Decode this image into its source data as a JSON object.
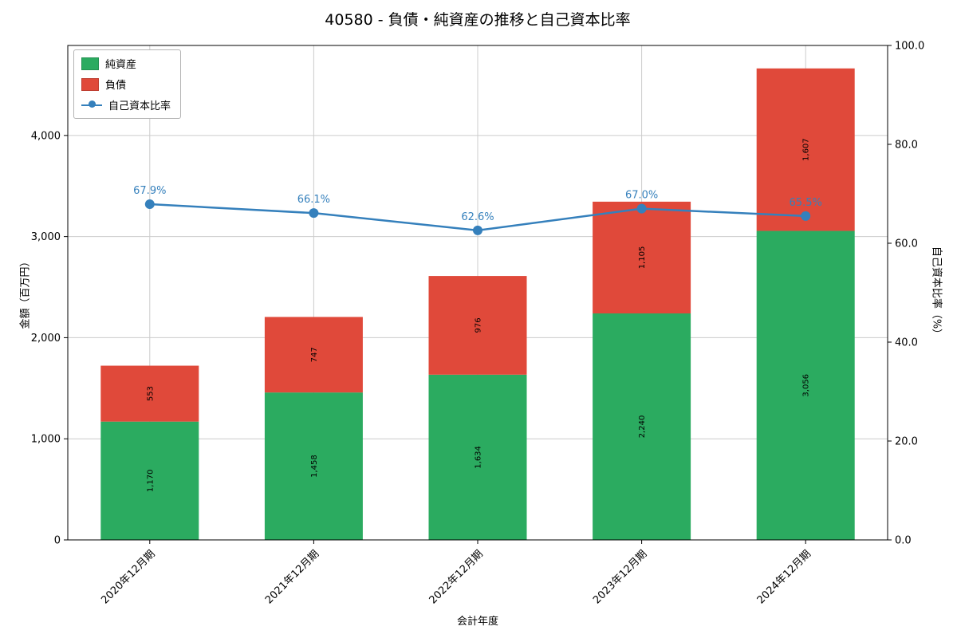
{
  "chart_data": {
    "type": "bar",
    "variant": "stacked-bars-with-line",
    "title": "40580 - 負債・純資産の推移と自己資本比率",
    "xlabel": "会計年度",
    "ylabel": "金額（百万円）",
    "y2label": "自己資本比率（%）",
    "categories": [
      "2020年12月期",
      "2021年12月期",
      "2022年12月期",
      "2023年12月期",
      "2024年12月期"
    ],
    "series": [
      {
        "name": "純資産",
        "color": "#2bab60",
        "values": [
          1170,
          1458,
          1634,
          2240,
          3056
        ],
        "labels": [
          "1,170",
          "1,458",
          "1,634",
          "2,240",
          "3,056"
        ]
      },
      {
        "name": "負債",
        "color": "#e0493a",
        "values": [
          553,
          747,
          976,
          1105,
          1607
        ],
        "labels": [
          "553",
          "747",
          "976",
          "1,105",
          "1,607"
        ]
      }
    ],
    "line": {
      "name": "自己資本比率",
      "color": "#3580bc",
      "values": [
        67.9,
        66.1,
        62.6,
        67.0,
        65.5
      ],
      "labels": [
        "67.9%",
        "66.1%",
        "62.6%",
        "67.0%",
        "65.5%"
      ]
    },
    "ylim": [
      0,
      4890
    ],
    "y2lim": [
      0,
      100
    ],
    "yticks": {
      "values": [
        0,
        1000,
        2000,
        3000,
        4000
      ],
      "labels": [
        "0",
        "1,000",
        "2,000",
        "3,000",
        "4,000"
      ]
    },
    "y2ticks": {
      "values": [
        0,
        20,
        40,
        60,
        80,
        100
      ],
      "labels": [
        "0.0",
        "20.0",
        "40.0",
        "60.0",
        "80.0",
        "100.0"
      ]
    },
    "grid": true,
    "legend_position": "upper-left"
  }
}
